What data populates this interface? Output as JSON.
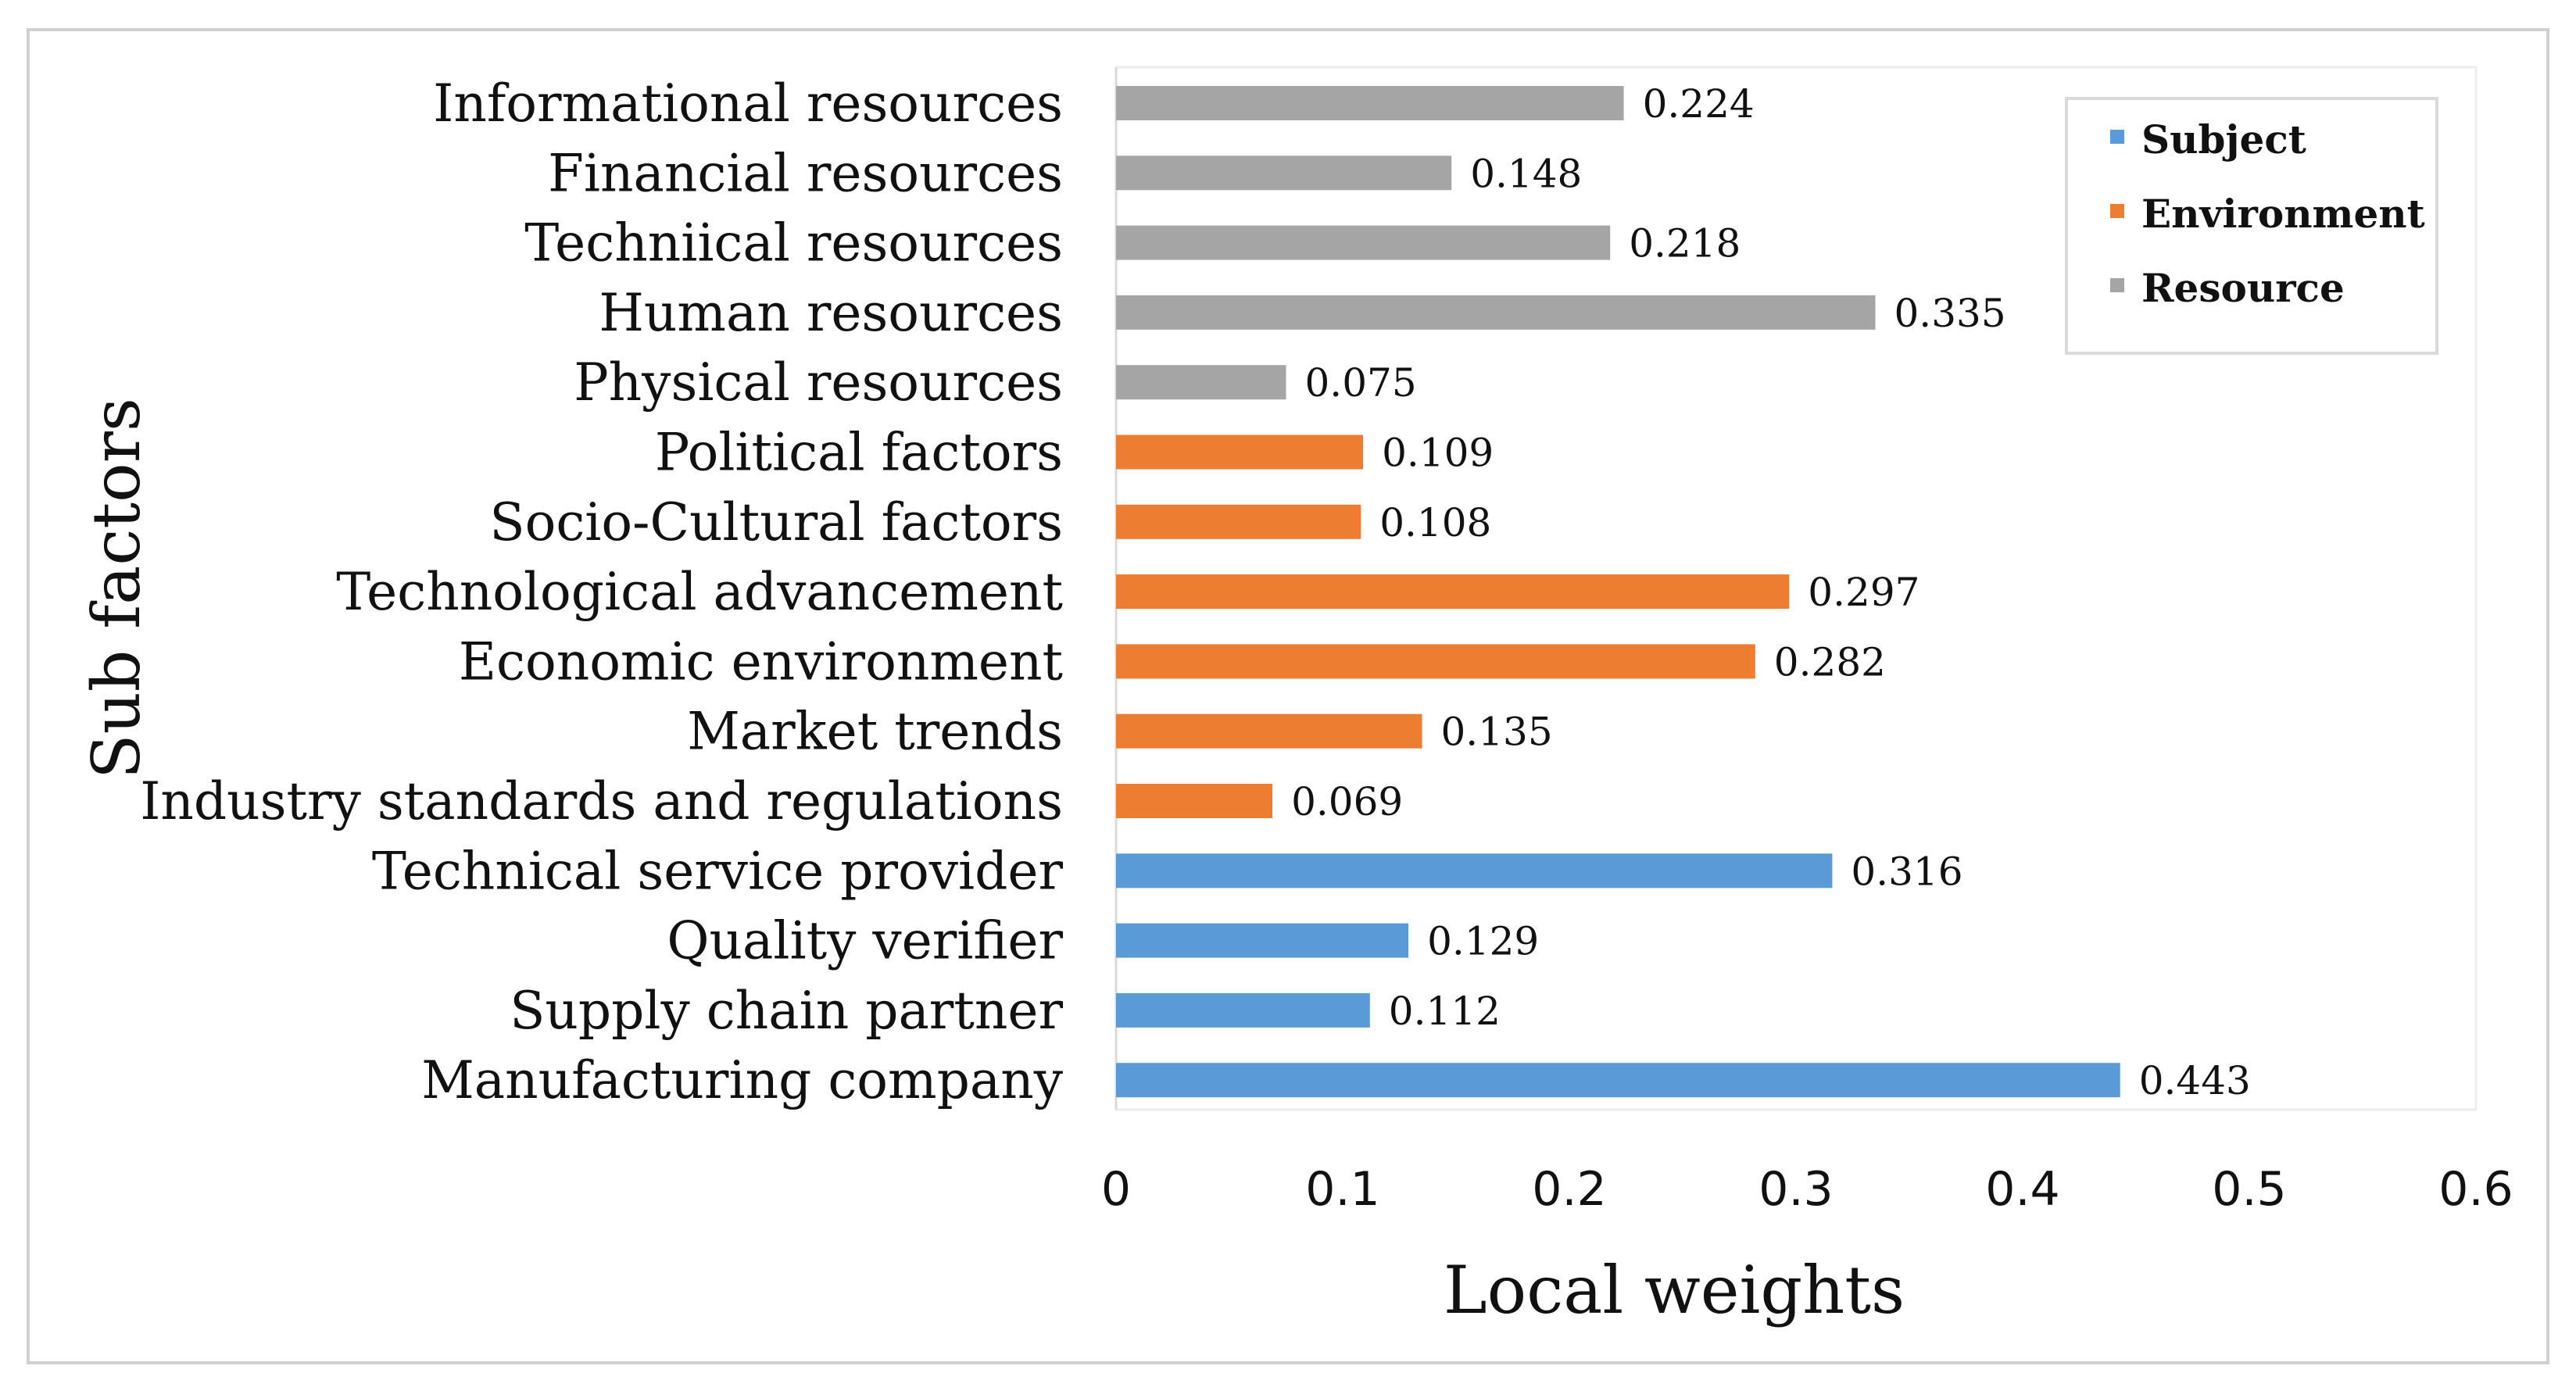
{
  "chart_data": {
    "type": "bar",
    "orientation": "horizontal",
    "xlabel": "Local weights",
    "ylabel": "Sub factors",
    "xlim": [
      0,
      0.6
    ],
    "xticks": [
      0,
      0.1,
      0.2,
      0.3,
      0.4,
      0.5,
      0.6
    ],
    "xtick_labels": [
      "0",
      "0.1",
      "0.2",
      "0.3",
      "0.4",
      "0.5",
      "0.6"
    ],
    "grid": false,
    "legend_position": "top-right",
    "series": [
      {
        "name": "Subject",
        "color": "#5b9bd5"
      },
      {
        "name": "Environment",
        "color": "#ed7d31"
      },
      {
        "name": "Resource",
        "color": "#a5a5a5"
      }
    ],
    "bars": [
      {
        "category": "Informational resources",
        "value": 0.224,
        "label": "0.224",
        "series": "Resource"
      },
      {
        "category": "Financial resources",
        "value": 0.148,
        "label": "0.148",
        "series": "Resource"
      },
      {
        "category": "Techniical resources",
        "value": 0.218,
        "label": "0.218",
        "series": "Resource"
      },
      {
        "category": "Human resources",
        "value": 0.335,
        "label": "0.335",
        "series": "Resource"
      },
      {
        "category": "Physical resources",
        "value": 0.075,
        "label": "0.075",
        "series": "Resource"
      },
      {
        "category": "Political factors",
        "value": 0.109,
        "label": "0.109",
        "series": "Environment"
      },
      {
        "category": "Socio-Cultural factors",
        "value": 0.108,
        "label": "0.108",
        "series": "Environment"
      },
      {
        "category": "Technological advancement",
        "value": 0.297,
        "label": "0.297",
        "series": "Environment"
      },
      {
        "category": "Economic environment",
        "value": 0.282,
        "label": "0.282",
        "series": "Environment"
      },
      {
        "category": "Market trends",
        "value": 0.135,
        "label": "0.135",
        "series": "Environment"
      },
      {
        "category": "Industry standards and regulations",
        "value": 0.069,
        "label": "0.069",
        "series": "Environment"
      },
      {
        "category": "Technical service provider",
        "value": 0.316,
        "label": "0.316",
        "series": "Subject"
      },
      {
        "category": "Quality verifier",
        "value": 0.129,
        "label": "0.129",
        "series": "Subject"
      },
      {
        "category": "Supply chain partner",
        "value": 0.112,
        "label": "0.112",
        "series": "Subject"
      },
      {
        "category": "Manufacturing company",
        "value": 0.443,
        "label": "0.443",
        "series": "Subject"
      }
    ]
  }
}
